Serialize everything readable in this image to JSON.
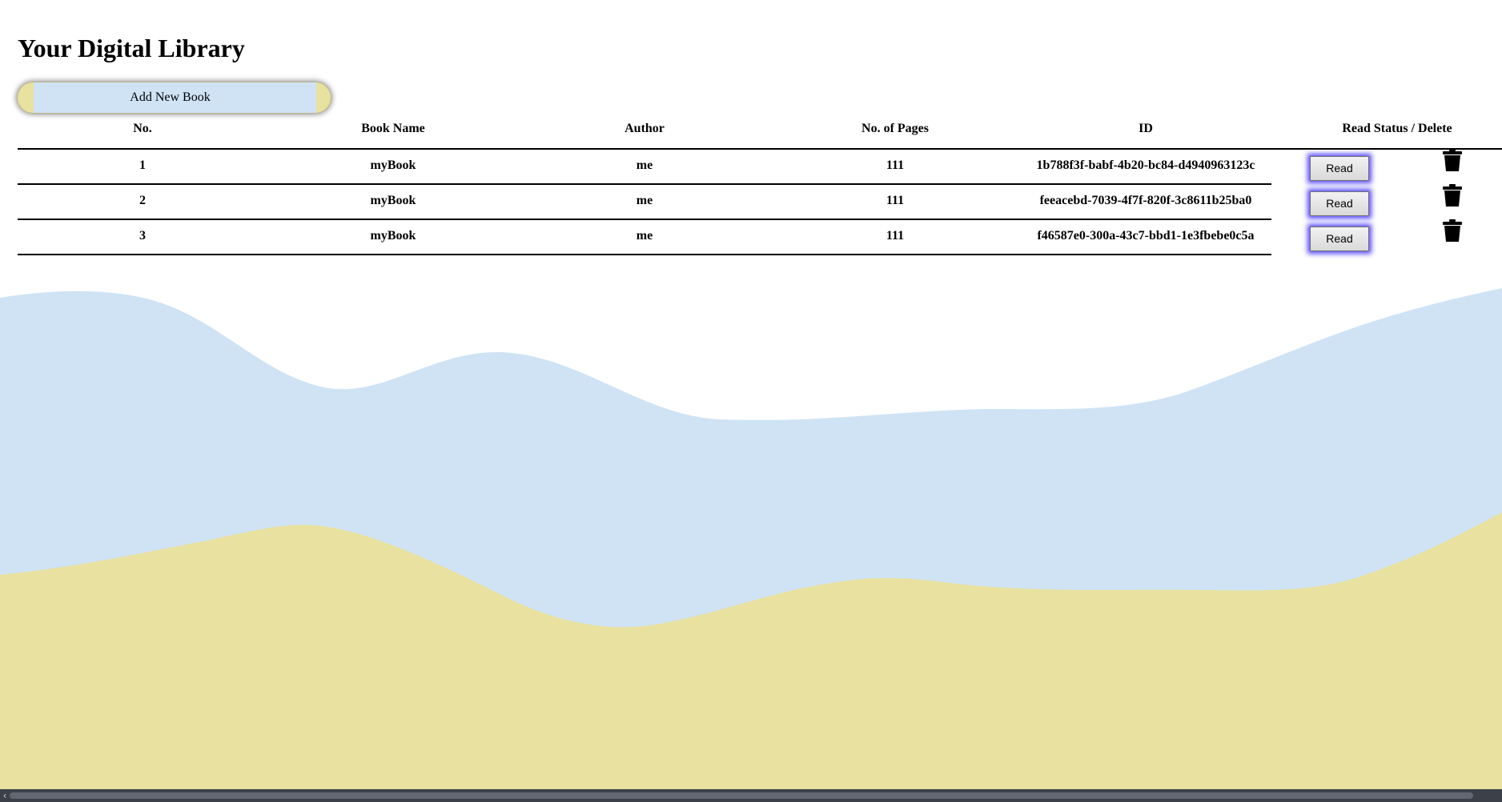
{
  "page": {
    "title": "Your Digital Library"
  },
  "toolbar": {
    "add_book_label": "Add New Book"
  },
  "table": {
    "headers": [
      "No.",
      "Book Name",
      "Author",
      "No. of Pages",
      "ID",
      "Read Status / Delete"
    ],
    "rows": [
      {
        "no": "1",
        "book_name": "myBook",
        "author": "me",
        "pages": "111",
        "id": "1b788f3f-babf-4b20-bc84-d4940963123c",
        "read_status": "Read"
      },
      {
        "no": "2",
        "book_name": "myBook",
        "author": "me",
        "pages": "111",
        "id": "feeacebd-7039-4f7f-820f-3c8611b25ba0",
        "read_status": "Read"
      },
      {
        "no": "3",
        "book_name": "myBook",
        "author": "me",
        "pages": "111",
        "id": "f46587e0-300a-43c7-bbd1-1e3fbebe0c5a",
        "read_status": "Read"
      }
    ]
  },
  "icons": {
    "delete": "trash-icon",
    "scroll_left": "chevron-left-icon"
  },
  "colors": {
    "wave_blue": "#cfe3f5",
    "wave_yellow": "#e8e1a0",
    "read_button_glow": "#5a4dff",
    "scrollbar": "#3c4049"
  }
}
